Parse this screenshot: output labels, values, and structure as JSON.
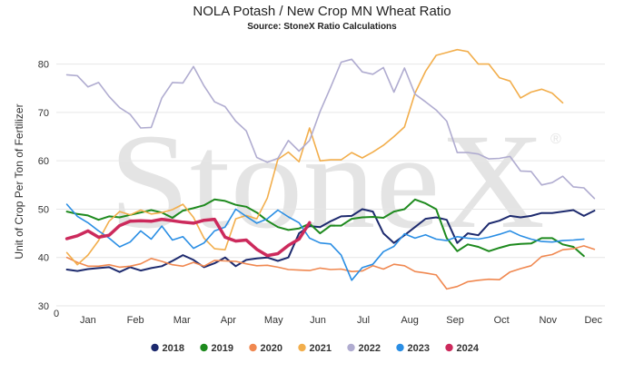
{
  "chart_data": {
    "type": "line",
    "title": "NOLA Potash / New Crop MN Wheat Ratio",
    "subtitle": "Source: StoneX Ratio Calculations",
    "watermark": "StoneX",
    "watermark_mark": "®",
    "xlabel": "",
    "ylabel": "Unit of Crop Per Ton of Fertilizer",
    "x_origin_label": "0",
    "xlim": [
      0,
      52
    ],
    "ylim": [
      30,
      85
    ],
    "yticks": [
      30,
      40,
      50,
      60,
      70,
      80
    ],
    "grid": "horizontal",
    "legend_position": "bottom",
    "month_labels": [
      {
        "label": "Jan",
        "week": 3
      },
      {
        "label": "Feb",
        "week": 7.5
      },
      {
        "label": "Mar",
        "week": 11.9
      },
      {
        "label": "Apr",
        "week": 16.3
      },
      {
        "label": "May",
        "week": 20.6
      },
      {
        "label": "Jun",
        "week": 24.8
      },
      {
        "label": "Jul",
        "week": 29.1
      },
      {
        "label": "Aug",
        "week": 33.5
      },
      {
        "label": "Sep",
        "week": 37.8
      },
      {
        "label": "Oct",
        "week": 42.2
      },
      {
        "label": "Nov",
        "week": 46.6
      },
      {
        "label": "Dec",
        "week": 50.9
      }
    ],
    "series": [
      {
        "name": "2018",
        "color": "#1d2a6e",
        "width": 2,
        "x": [
          1,
          2,
          3,
          4,
          5,
          6,
          7,
          8,
          9,
          10,
          11,
          12,
          13,
          14,
          15,
          16,
          17,
          18,
          19,
          20,
          21,
          22,
          23,
          24,
          25,
          26,
          27,
          28,
          29,
          30,
          31,
          32,
          33,
          34,
          35,
          36,
          37,
          38,
          39,
          40,
          41,
          42,
          43,
          44,
          45,
          46,
          47,
          48,
          49,
          50,
          51,
          52
        ],
        "y": [
          37.5,
          37.2,
          37.6,
          37.8,
          38,
          37,
          38,
          37.3,
          37.8,
          38.2,
          39.3,
          40.5,
          39.5,
          38,
          38.8,
          40,
          38.2,
          39.5,
          39.8,
          40,
          39.3,
          40,
          45,
          46.5,
          46.3,
          47.5,
          48.5,
          48.6,
          50,
          49.5,
          45,
          43,
          44.6,
          46.3,
          48,
          48.3,
          47.8,
          43,
          45,
          44.6,
          47,
          47.6,
          48.6,
          48.3,
          48.6,
          49.2,
          49.2,
          49.5,
          49.8,
          48.6,
          49.7,
          null
        ]
      },
      {
        "name": "2019",
        "color": "#1e8a1e",
        "width": 2,
        "x": [
          1,
          2,
          3,
          4,
          5,
          6,
          7,
          8,
          9,
          10,
          11,
          12,
          13,
          14,
          15,
          16,
          17,
          18,
          19,
          20,
          21,
          22,
          23,
          24,
          25,
          26,
          27,
          28,
          29,
          30,
          31,
          32,
          33,
          34,
          35,
          36,
          37,
          38,
          39,
          40,
          41,
          42,
          43,
          44,
          45,
          46,
          47,
          48,
          49,
          50,
          51,
          52
        ],
        "y": [
          49.5,
          49,
          48.7,
          47.8,
          48.5,
          48.3,
          48.8,
          49.3,
          49.8,
          49.3,
          48.2,
          49.7,
          50.2,
          50.8,
          52,
          51.7,
          50.9,
          50.5,
          49.3,
          47.6,
          46.3,
          45.7,
          46,
          47,
          45,
          46.6,
          46.6,
          48,
          48.3,
          48.4,
          48.2,
          49.5,
          50,
          52,
          51.2,
          50,
          44,
          41.3,
          42.7,
          42.2,
          41.3,
          42,
          42.6,
          42.8,
          42.9,
          44,
          44,
          42.7,
          42.2,
          40.3,
          null,
          null
        ]
      },
      {
        "name": "2020",
        "color": "#f08850",
        "width": 1.6,
        "x": [
          1,
          2,
          3,
          4,
          5,
          6,
          7,
          8,
          9,
          10,
          11,
          12,
          13,
          14,
          15,
          16,
          17,
          18,
          19,
          20,
          21,
          22,
          23,
          24,
          25,
          26,
          27,
          28,
          29,
          30,
          31,
          32,
          33,
          34,
          35,
          36,
          37,
          38,
          39,
          40,
          41,
          42,
          43,
          44,
          45,
          46,
          47,
          48,
          49,
          50,
          51,
          52
        ],
        "y": [
          40,
          39,
          38.2,
          38.2,
          38.5,
          38,
          38.2,
          38.7,
          39.8,
          39.2,
          38.5,
          38.2,
          39,
          38.2,
          39.4,
          39.3,
          39.2,
          38.7,
          38.3,
          38.4,
          38,
          37.5,
          37.4,
          37.3,
          37.8,
          37.5,
          37.6,
          37.1,
          37.2,
          38.3,
          37.6,
          38.6,
          38.3,
          37.1,
          36.8,
          36.4,
          33.5,
          34,
          35,
          35.3,
          35.5,
          35.4,
          37,
          37.7,
          38.3,
          40.2,
          40.6,
          41.6,
          41.8,
          42.4,
          41.7,
          null
        ]
      },
      {
        "name": "2021",
        "color": "#f2ae4c",
        "width": 1.6,
        "x": [
          1,
          2,
          3,
          4,
          5,
          6,
          7,
          8,
          9,
          10,
          11,
          12,
          13,
          14,
          15,
          16,
          17,
          18,
          19,
          20,
          21,
          22,
          23,
          24,
          25,
          26,
          27,
          28,
          29,
          30,
          31,
          32,
          33,
          34,
          35,
          36,
          37,
          38,
          39,
          40,
          41,
          42,
          43,
          44,
          45,
          46,
          47,
          48,
          49,
          50,
          51,
          52
        ],
        "y": [
          41,
          38.5,
          40.5,
          43.5,
          47.5,
          49.5,
          48.8,
          49.8,
          49,
          49.3,
          49.9,
          51,
          48.3,
          44,
          41.8,
          41.6,
          48,
          48.7,
          48,
          52.3,
          60.3,
          61.8,
          59.8,
          66.8,
          60,
          60.2,
          60.2,
          61.7,
          60.6,
          61.8,
          63.2,
          65,
          67,
          74,
          78.5,
          81.8,
          82.4,
          83,
          82.6,
          80,
          80,
          77.2,
          76.5,
          73,
          74.2,
          74.8,
          74,
          72,
          null,
          null,
          null,
          null
        ]
      },
      {
        "name": "2022",
        "color": "#b0acd0",
        "width": 1.6,
        "x": [
          1,
          2,
          3,
          4,
          5,
          6,
          7,
          8,
          9,
          10,
          11,
          12,
          13,
          14,
          15,
          16,
          17,
          18,
          19,
          20,
          21,
          22,
          23,
          24,
          25,
          26,
          27,
          28,
          29,
          30,
          31,
          32,
          33,
          34,
          35,
          36,
          37,
          38,
          39,
          40,
          41,
          42,
          43,
          44,
          45,
          46,
          47,
          48,
          49,
          50,
          51,
          52
        ],
        "y": [
          77.8,
          77.6,
          75.3,
          76.2,
          73.3,
          71,
          69.6,
          66.8,
          66.9,
          73,
          76.2,
          76.1,
          79.5,
          75.5,
          72.2,
          71.2,
          68.2,
          66.2,
          60.7,
          59.7,
          60.5,
          64.2,
          62,
          64.2,
          70.2,
          75.2,
          80.4,
          81,
          78.4,
          77.9,
          79.3,
          74.2,
          79.2,
          73.8,
          72.2,
          70.5,
          68.2,
          61.7,
          61.7,
          61.4,
          60.4,
          60.5,
          60.9,
          57.9,
          57.8,
          55,
          55.5,
          56.8,
          54.6,
          54.4,
          52.2,
          null
        ]
      },
      {
        "name": "2023",
        "color": "#2a8ee4",
        "width": 1.6,
        "x": [
          1,
          2,
          3,
          4,
          5,
          6,
          7,
          8,
          9,
          10,
          11,
          12,
          13,
          14,
          15,
          16,
          17,
          18,
          19,
          20,
          21,
          22,
          23,
          24,
          25,
          26,
          27,
          28,
          29,
          30,
          31,
          32,
          33,
          34,
          35,
          36,
          37,
          38,
          39,
          40,
          41,
          42,
          43,
          44,
          45,
          46,
          47,
          48,
          49,
          50,
          51,
          52
        ],
        "y": [
          51,
          48.5,
          47.2,
          45.5,
          44,
          42.2,
          43.2,
          45.5,
          43.8,
          46.5,
          43.6,
          44.3,
          41.9,
          43,
          45.5,
          46.3,
          50,
          48.5,
          47.1,
          48,
          49.8,
          48.4,
          47.2,
          44,
          43,
          42.8,
          40.5,
          35.3,
          37.9,
          38.6,
          41.2,
          42.3,
          44.9,
          44,
          44.7,
          43.8,
          43.5,
          44.3,
          44,
          43.8,
          44.2,
          44.8,
          45.5,
          44.5,
          43.8,
          43.3,
          43.2,
          43.5,
          43.6,
          43.8,
          null,
          null
        ]
      },
      {
        "name": "2024",
        "color": "#cc2a5c",
        "width": 3.5,
        "x": [
          1,
          2,
          3,
          4,
          5,
          6,
          7,
          8,
          9,
          10,
          11,
          12,
          13,
          14,
          15,
          16,
          17,
          18,
          19,
          20,
          21,
          22,
          23,
          24,
          25,
          26,
          27,
          28,
          29,
          30,
          31,
          32,
          33,
          34,
          35,
          36,
          37,
          38,
          39,
          40,
          41,
          42,
          43,
          44,
          45,
          46,
          47,
          48,
          49,
          50,
          51,
          52
        ],
        "y": [
          43.9,
          44.5,
          45.5,
          44.2,
          44.6,
          46.6,
          47.5,
          47.6,
          47.5,
          47.9,
          47.6,
          47.3,
          47.1,
          47.7,
          47.9,
          44.2,
          43.4,
          43.6,
          41.7,
          40.4,
          40.8,
          42.5,
          43.8,
          47.2,
          null,
          null,
          null,
          null,
          null,
          null,
          null,
          null,
          null,
          null,
          null,
          null,
          null,
          null,
          null,
          null,
          null,
          null,
          null,
          null,
          null,
          null,
          null,
          null,
          null,
          null,
          null,
          null
        ]
      }
    ]
  }
}
